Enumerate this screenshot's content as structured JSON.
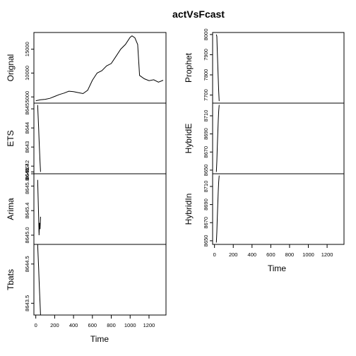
{
  "chart_data": {
    "type": "line",
    "title": "actVsFcast",
    "xlabel": "Time",
    "x_ticks": [
      0,
      200,
      400,
      600,
      800,
      1000,
      1200
    ],
    "xlim": [
      -20,
      1380
    ],
    "panels": [
      {
        "name": "Orignal",
        "ylim": [
          3700,
          18500
        ],
        "y_ticks": [
          5000,
          10000,
          15000
        ],
        "y_tick_labels": [
          "5000",
          "10000",
          "15000"
        ],
        "x": [
          0,
          50,
          100,
          150,
          200,
          250,
          300,
          350,
          400,
          450,
          500,
          550,
          600,
          650,
          700,
          750,
          800,
          850,
          900,
          950,
          1000,
          1020,
          1050,
          1080,
          1100,
          1150,
          1200,
          1250,
          1300,
          1350
        ],
        "values": [
          4200,
          4400,
          4500,
          4700,
          5100,
          5500,
          5800,
          6200,
          6100,
          5900,
          5700,
          6400,
          8500,
          10000,
          10500,
          11500,
          12000,
          13500,
          15000,
          16000,
          17500,
          17800,
          17400,
          16000,
          9500,
          8800,
          8400,
          8600,
          8100,
          8500
        ]
      },
      {
        "name": "ETS",
        "ylim": [
          8641.6,
          8645.3
        ],
        "y_ticks": [
          8641.7,
          8642,
          8643,
          8644,
          8645
        ],
        "y_tick_labels": [
          "8641.7",
          "8642",
          "8643",
          "8644",
          "8645"
        ],
        "x": [
          20,
          25,
          30,
          35,
          40,
          45,
          50
        ],
        "values": [
          8645.2,
          8644.6,
          8644.0,
          8643.4,
          8642.8,
          8642.2,
          8641.7
        ]
      },
      {
        "name": "Arima",
        "ylim": [
          8644.85,
          8646.0
        ],
        "y_ticks": [
          8645.0,
          8645.4,
          8645.8,
          8646.0
        ],
        "y_tick_labels": [
          "8645.0",
          "8645.4",
          "8645.8",
          "8646"
        ],
        "x": [
          20,
          25,
          30,
          35,
          40,
          45,
          50
        ],
        "values": [
          8645.9,
          8645.6,
          8645.3,
          8645.0,
          8645.2,
          8645.1,
          8645.3
        ]
      },
      {
        "name": "Tbats",
        "ylim": [
          8643.2,
          8645.0
        ],
        "y_ticks": [
          8643.5,
          8644.5
        ],
        "y_tick_labels": [
          "8643.5",
          "8644.5"
        ],
        "x": [
          20,
          25,
          30,
          35,
          40,
          45,
          50
        ],
        "values": [
          8645.0,
          8644.7,
          8644.4,
          8644.1,
          8643.8,
          8643.5,
          8643.2
        ]
      },
      {
        "name": "Prophet",
        "ylim": [
          7660,
          8010
        ],
        "y_ticks": [
          7700,
          7800,
          7900,
          8000
        ],
        "y_tick_labels": [
          "7700",
          "7800",
          "7900",
          "8000"
        ],
        "x": [
          20,
          25,
          30,
          35,
          40,
          45,
          50
        ],
        "values": [
          8000,
          7990,
          7920,
          7850,
          7780,
          7720,
          7670
        ]
      },
      {
        "name": "HybridE",
        "ylim": [
          8646,
          8724
        ],
        "y_ticks": [
          8650,
          8670,
          8690,
          8710
        ],
        "y_tick_labels": [
          "8650",
          "8670",
          "8690",
          "8710"
        ],
        "x": [
          20,
          25,
          30,
          35,
          40,
          45,
          50
        ],
        "values": [
          8648,
          8660,
          8675,
          8690,
          8705,
          8715,
          8722
        ]
      },
      {
        "name": "HybridIn",
        "ylim": [
          8646,
          8724
        ],
        "y_ticks": [
          8650,
          8670,
          8690,
          8710
        ],
        "y_tick_labels": [
          "8650",
          "8670",
          "8690",
          "8710"
        ],
        "x": [
          20,
          25,
          30,
          35,
          40,
          45,
          50
        ],
        "values": [
          8648,
          8660,
          8675,
          8690,
          8705,
          8715,
          8722
        ]
      }
    ]
  }
}
